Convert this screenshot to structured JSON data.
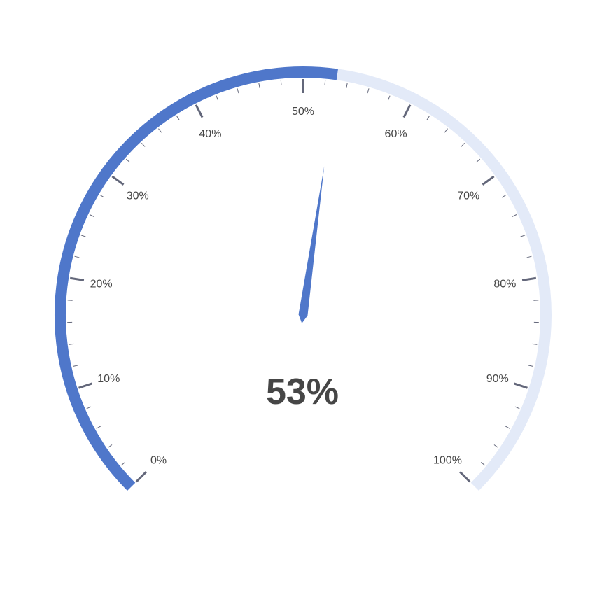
{
  "chart_data": {
    "type": "gauge",
    "value": 53,
    "min": 0,
    "max": 100,
    "unit": "%",
    "value_label": "53%",
    "tick_labels": [
      "0%",
      "10%",
      "20%",
      "30%",
      "40%",
      "50%",
      "60%",
      "70%",
      "80%",
      "90%",
      "100%"
    ],
    "minor_ticks_per_major": 5,
    "colors": {
      "progress": "#4f77ca",
      "track": "#e3eaf8",
      "needle": "#4f77ca",
      "tick": "#63677a",
      "text": "#464646"
    }
  }
}
